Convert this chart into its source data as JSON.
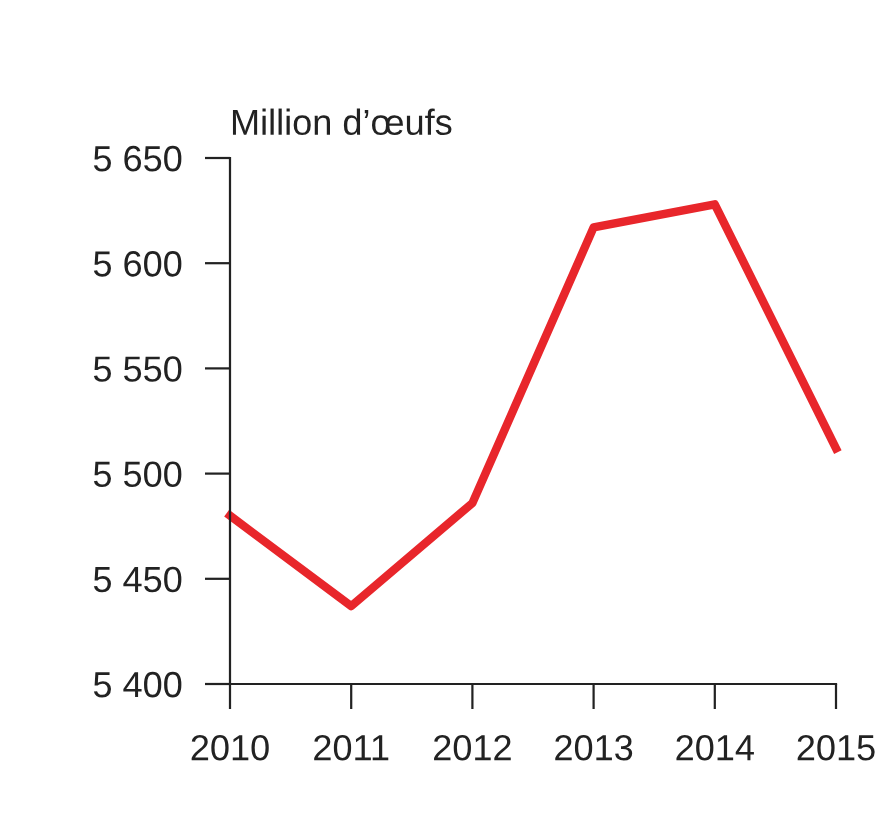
{
  "chart_data": {
    "type": "line",
    "ylabel": "Million d’œufs",
    "categories": [
      "2010",
      "2011",
      "2012",
      "2013",
      "2014",
      "2015"
    ],
    "series": [
      {
        "color": "#e8262b",
        "values": [
          5480,
          5437,
          5486,
          5617,
          5628,
          5512
        ]
      }
    ],
    "ylim": [
      5400,
      5650
    ],
    "yticks": [
      {
        "value": 5400,
        "label": "5 400"
      },
      {
        "value": 5450,
        "label": "5 450"
      },
      {
        "value": 5500,
        "label": "5 500"
      },
      {
        "value": 5550,
        "label": "5 550"
      },
      {
        "value": 5600,
        "label": "5 600"
      },
      {
        "value": 5650,
        "label": "5 650"
      }
    ],
    "grid": false,
    "marker": "none",
    "line_style": "solid"
  }
}
